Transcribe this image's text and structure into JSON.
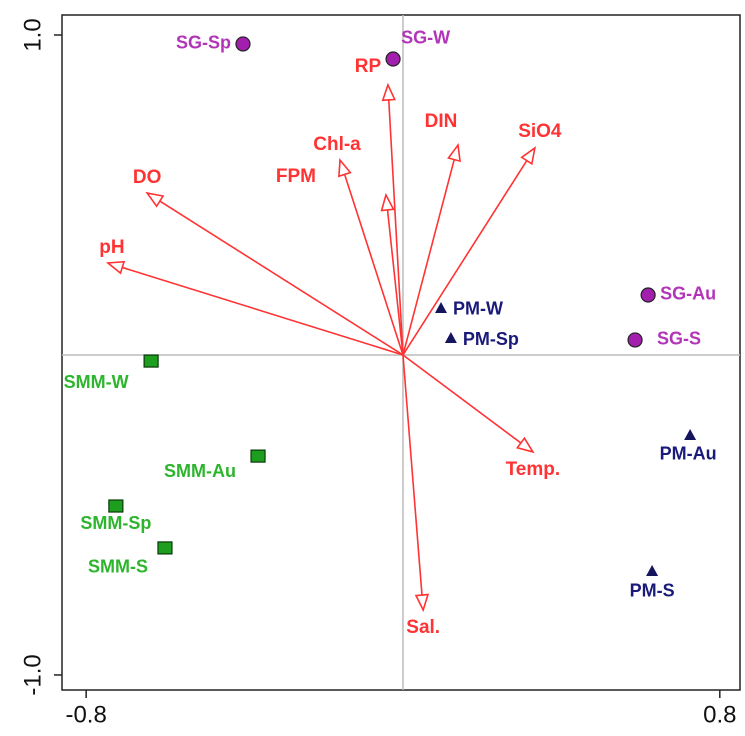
{
  "chart_data": {
    "type": "biplot",
    "xlim": [
      -0.861,
      0.851
    ],
    "ylim": [
      -1.047,
      1.0625
    ],
    "xticks": [
      -0.8,
      0.8
    ],
    "yticks": [
      {
        "value": -1,
        "label": "-1.0"
      },
      {
        "value": 1,
        "label": "1.0"
      }
    ],
    "zero_lines": true,
    "vectors": {
      "color": "#ff3333",
      "labels": [
        "RP",
        "DIN",
        "SiO4",
        "Chl-a",
        "FPM",
        "DO",
        "pH",
        "Temp.",
        "Sal."
      ],
      "x": [
        -0.038,
        0.139,
        0.333,
        -0.159,
        -0.043,
        -0.646,
        -0.745,
        0.328,
        0.051
      ],
      "y": [
        0.844,
        0.656,
        0.647,
        0.609,
        0.5,
        0.506,
        0.2875,
        -0.303,
        -0.797
      ]
    },
    "series": [
      {
        "marker": "circle",
        "color": "#a21fae",
        "label_color": "#b235b8",
        "labels": [
          "SG-Sp",
          "SG-W",
          "SG-Au",
          "SG-S"
        ],
        "x": [
          -0.404,
          -0.025,
          0.619,
          0.586
        ],
        "y": [
          0.972,
          0.925,
          0.1875,
          0.047
        ]
      },
      {
        "marker": "triangle",
        "color": "#15155e",
        "label_color": "#1a1a7a",
        "labels": [
          "PM-W",
          "PM-Sp",
          "PM-Au",
          "PM-S"
        ],
        "x": [
          0.096,
          0.121,
          0.725,
          0.629
        ],
        "y": [
          0.147,
          0.053,
          -0.25,
          -0.675
        ]
      },
      {
        "marker": "square",
        "color": "#1e9e1e",
        "label_color": "#2db52d",
        "labels": [
          "SMM-W",
          "SMM-Au",
          "SMM-Sp",
          "SMM-S"
        ],
        "x": [
          -0.636,
          -0.366,
          -0.725,
          -0.601
        ],
        "y": [
          -0.019,
          -0.316,
          -0.472,
          -0.603
        ]
      }
    ]
  }
}
